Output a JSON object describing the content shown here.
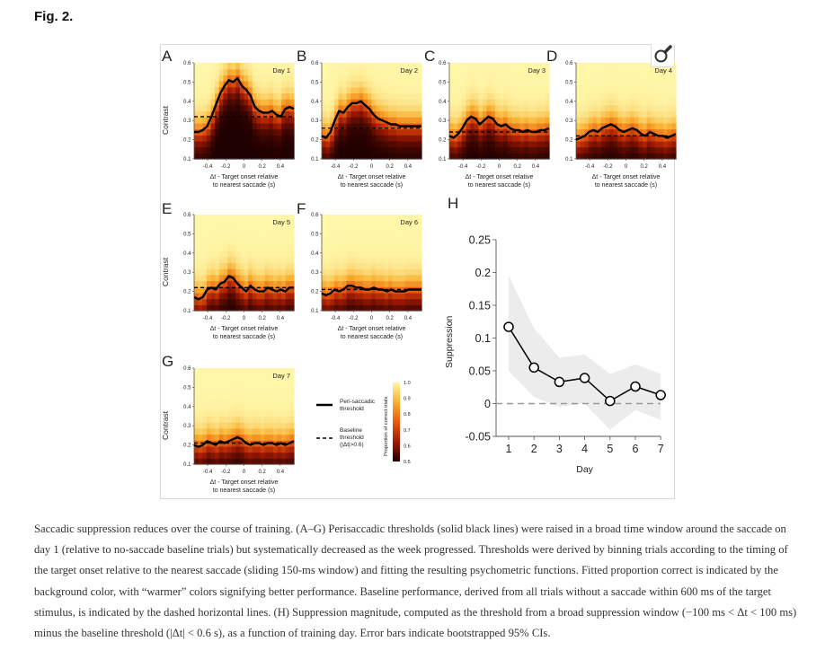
{
  "figure_label": "Fig. 2.",
  "panels": [
    {
      "letter": "A",
      "title": "Day 1",
      "ylabel": "Contrast",
      "xlabel1": "Δt - Target onset relative",
      "xlabel2": "to nearest saccade (s)",
      "yticks": [
        "0.1",
        "0.2",
        "0.3",
        "0.4",
        "0.5",
        "0.6"
      ],
      "xticks": [
        "-0.4",
        "-0.2",
        "0",
        "0.2",
        "0.4"
      ],
      "baseline": 0.32,
      "threshold": [
        0.24,
        0.24,
        0.25,
        0.27,
        0.32,
        0.38,
        0.44,
        0.48,
        0.51,
        0.5,
        0.52,
        0.48,
        0.46,
        0.43,
        0.37,
        0.35,
        0.34,
        0.34,
        0.35,
        0.33,
        0.32,
        0.36,
        0.37,
        0.36
      ]
    },
    {
      "letter": "B",
      "title": "Day 2",
      "ylabel": "",
      "xlabel1": "Δt - Target onset relative",
      "xlabel2": "to nearest saccade (s)",
      "yticks": [
        "0.1",
        "0.2",
        "0.3",
        "0.4",
        "0.5",
        "0.6"
      ],
      "xticks": [
        "-0.4",
        "-0.2",
        "0",
        "0.2",
        "0.4"
      ],
      "baseline": 0.26,
      "threshold": [
        0.22,
        0.21,
        0.24,
        0.3,
        0.35,
        0.34,
        0.37,
        0.39,
        0.39,
        0.4,
        0.38,
        0.36,
        0.33,
        0.31,
        0.3,
        0.29,
        0.28,
        0.28,
        0.27,
        0.27,
        0.27,
        0.27,
        0.27,
        0.27
      ]
    },
    {
      "letter": "C",
      "title": "Day 3",
      "ylabel": "",
      "xlabel1": "Δt - Target onset relative",
      "xlabel2": "to nearest saccade (s)",
      "yticks": [
        "0.1",
        "0.2",
        "0.3",
        "0.4",
        "0.5",
        "0.6"
      ],
      "xticks": [
        "-0.4",
        "-0.2",
        "0",
        "0.2",
        "0.4"
      ],
      "baseline": 0.24,
      "threshold": [
        0.22,
        0.21,
        0.23,
        0.26,
        0.3,
        0.32,
        0.31,
        0.28,
        0.3,
        0.32,
        0.31,
        0.28,
        0.27,
        0.28,
        0.26,
        0.25,
        0.25,
        0.24,
        0.25,
        0.24,
        0.24,
        0.25,
        0.25,
        0.26
      ]
    },
    {
      "letter": "D",
      "title": "Day 4",
      "ylabel": "",
      "xlabel1": "Δt - Target onset relative",
      "xlabel2": "to nearest saccade (s)",
      "yticks": [
        "0.1",
        "0.2",
        "0.3",
        "0.4",
        "0.5",
        "0.6"
      ],
      "xticks": [
        "-0.4",
        "-0.2",
        "0",
        "0.2",
        "0.4"
      ],
      "baseline": 0.22,
      "threshold": [
        0.2,
        0.21,
        0.22,
        0.24,
        0.25,
        0.24,
        0.26,
        0.27,
        0.28,
        0.27,
        0.25,
        0.24,
        0.25,
        0.26,
        0.25,
        0.23,
        0.22,
        0.24,
        0.23,
        0.22,
        0.22,
        0.21,
        0.22,
        0.23
      ]
    },
    {
      "letter": "E",
      "title": "Day 5",
      "ylabel": "Contrast",
      "xlabel1": "Δt - Target onset relative",
      "xlabel2": "to nearest saccade (s)",
      "yticks": [
        "0.1",
        "0.2",
        "0.3",
        "0.4",
        "0.5",
        "0.6"
      ],
      "xticks": [
        "-0.4",
        "-0.2",
        "0",
        "0.2",
        "0.4"
      ],
      "baseline": 0.22,
      "threshold": [
        0.17,
        0.16,
        0.17,
        0.21,
        0.22,
        0.21,
        0.24,
        0.25,
        0.28,
        0.27,
        0.24,
        0.22,
        0.2,
        0.23,
        0.21,
        0.2,
        0.2,
        0.22,
        0.21,
        0.2,
        0.21,
        0.2,
        0.22,
        0.22
      ]
    },
    {
      "letter": "F",
      "title": "Day 6",
      "ylabel": "",
      "xlabel1": "Δt - Target onset relative",
      "xlabel2": "to nearest saccade (s)",
      "yticks": [
        "0.1",
        "0.2",
        "0.3",
        "0.4",
        "0.5",
        "0.6"
      ],
      "xticks": [
        "-0.4",
        "-0.2",
        "0",
        "0.2",
        "0.4"
      ],
      "baseline": 0.21,
      "threshold": [
        0.19,
        0.18,
        0.19,
        0.21,
        0.2,
        0.21,
        0.23,
        0.23,
        0.22,
        0.22,
        0.21,
        0.21,
        0.22,
        0.21,
        0.21,
        0.2,
        0.21,
        0.2,
        0.2,
        0.2,
        0.21,
        0.21,
        0.21,
        0.21
      ]
    },
    {
      "letter": "G",
      "title": "Day 7",
      "ylabel": "Contrast",
      "xlabel1": "Δt - Target onset relative",
      "xlabel2": "to nearest saccade (s)",
      "yticks": [
        "0.1",
        "0.2",
        "0.3",
        "0.4",
        "0.5",
        "0.6"
      ],
      "xticks": [
        "-0.4",
        "-0.2",
        "0",
        "0.2",
        "0.4"
      ],
      "baseline": 0.21,
      "threshold": [
        0.2,
        0.19,
        0.2,
        0.22,
        0.21,
        0.2,
        0.22,
        0.21,
        0.22,
        0.23,
        0.24,
        0.23,
        0.21,
        0.2,
        0.21,
        0.21,
        0.2,
        0.21,
        0.21,
        0.2,
        0.21,
        0.2,
        0.21,
        0.22
      ]
    }
  ],
  "legend": {
    "peri_line1": "Peri-saccadic",
    "peri_line2": "threshold",
    "base_line1": "Baseline",
    "base_line2": "threshold",
    "base_line3": "(|Δt|>0.6)",
    "colorbar_label": "Proportion of correct trials",
    "colorbar_ticks": [
      "1.0",
      "0.9",
      "0.8",
      "0.7",
      "0.6",
      "0.5"
    ]
  },
  "chart_data": {
    "type": "line",
    "panel": "H",
    "title": "",
    "xlabel": "Day",
    "ylabel": "Suppression",
    "x": [
      1,
      2,
      3,
      4,
      5,
      6,
      7
    ],
    "values": [
      0.117,
      0.055,
      0.033,
      0.039,
      0.004,
      0.026,
      0.013
    ],
    "ci_upper": [
      0.195,
      0.115,
      0.07,
      0.075,
      0.045,
      0.06,
      0.045
    ],
    "ci_lower": [
      0.05,
      0.01,
      -0.005,
      0.0,
      -0.04,
      -0.01,
      -0.025
    ],
    "ylim": [
      -0.05,
      0.25
    ],
    "yticks": [
      "-0.05",
      "0",
      "0.05",
      "0.1",
      "0.15",
      "0.2",
      "0.25"
    ],
    "xticks": [
      "1",
      "2",
      "3",
      "4",
      "5",
      "6",
      "7"
    ],
    "reference_line": 0
  },
  "caption": "Saccadic suppression reduces over the course of training. (A–G) Perisaccadic thresholds (solid black lines) were raised in a broad time window around the saccade on day 1 (relative to no-saccade baseline trials) but systematically decreased as the week progressed. Thresholds were derived by binning trials according to the timing of the target onset relative to the nearest saccade (sliding 150-ms window) and fitting the resulting psychometric functions. Fitted proportion correct is indicated by the background color, with “warmer” colors signifying better performance. Baseline performance, derived from all trials without a saccade within 600 ms of the target stimulus, is indicated by the dashed horizontal lines. (H) Suppression magnitude, computed as the threshold from a broad suppression window (−100 ms < Δt < 100 ms) minus the baseline threshold (|Δt| < 0.6 s), as a function of training day. Error bars indicate bootstrapped 95% CIs.",
  "colors": {
    "heat_high": "#fff2a0",
    "heat_mid": "#f07a10",
    "heat_low": "#2a0000",
    "ci_band": "#ececec",
    "line": "#000000"
  }
}
